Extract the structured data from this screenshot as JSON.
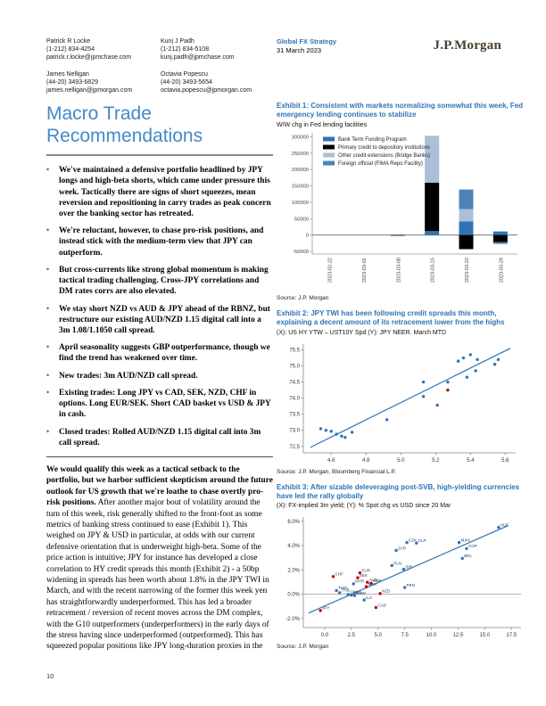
{
  "header": {
    "contacts": [
      {
        "name": "Patrick R Locke",
        "phone": "(1-212) 834-4254",
        "email": "patrick.r.locke@jpmchase.com"
      },
      {
        "name": "Kunj J Padh",
        "phone": "(1-212) 834-5108",
        "email": "kunj.padh@jpmchase.com"
      },
      {
        "name": "James Nelligan",
        "phone": "(44-20) 3493-6829",
        "email": "james.nelligan@jpmorgan.com"
      },
      {
        "name": "Octavia Popescu",
        "phone": "(44-20) 3493-5654",
        "email": "octavia.popescu@jpmorgan.com"
      }
    ],
    "strategy": "Global FX Strategy",
    "date": "31 March 2023",
    "logo": "J.P.Morgan"
  },
  "left": {
    "title": "Macro Trade Recommendations",
    "bullets": [
      "We've maintained a defensive portfolio headlined by JPY longs and high-beta shorts, which came under pressure this week. Tactically there are signs of short squeezes, mean reversion and repositioning in carry trades as peak concern over the banking sector has retreated.",
      "We're reluctant, however, to chase pro-risk positions, and instead stick with the medium-term view that JPY can outperform.",
      "But cross-currents like strong global momentum is making tactical trading challenging. Cross-JPY correlations and DM rates corrs are also elevated.",
      "We stay short NZD vs AUD & JPY ahead of the RBNZ, but restructure our existing AUD/NZD 1.15 digital call into a 3m 1.08/1.1050 call spread.",
      "April seasonality suggests GBP outperformance, though we find the trend has weakened over time.",
      "New trades: 3m AUD/NZD call spread.",
      "Existing trades: Long JPY vs CAD, SEK, NZD, CHF in options. Long EUR/SEK. Short CAD basket vs USD & JPY in cash.",
      "Closed trades: Rolled AUD/NZD 1.15 digital call into 3m call spread."
    ],
    "body_runs": [
      {
        "t": "We would qualify this week as a tactical setback to the portfolio, but we harbor sufficient skepticism around the future outlook for US growth that we're loathe to chase overtly pro-risk positions.",
        "b": true
      },
      {
        "t": " After another major bout of volatility around the turn of this week, risk generally shifted to the front-foot as some metrics of banking stress continued to ease (Exhibit 1). This weighed on JPY & USD in particular, at odds with our current defensive orientation that is underweight high-beta. Some of the price action is intuitive; JPY for instance has developed a close correlation to HY credit spreads this month (Exhibit 2) - a 50bp widening in spreads has been worth about 1.8% in the JPY TWI in March, and with the recent narrowing of the former this week yen has straightforwardly underperformed. This has led a broader retracement / reversion of recent moves across the DM complex, with the G10 outperformers (underperformers) in the early days of the stress having since underperformed (outperformed). This has squeezed popular positions like JPY long-duration proxies in the",
        "b": false
      }
    ],
    "page_number": "10"
  },
  "exhibits": [
    {
      "title": "Exhibit 1: Consistent with markets normalizing somewhat this week, Fed emergency lending continues to stabilize",
      "subtitle": "W/W chg in Fed lending facilities",
      "source": "Source: J.P. Morgan"
    },
    {
      "title": "Exhibit 2: JPY TWI has been following credit spreads this month, explaining a decent amount of its retracement lower from the highs",
      "subtitle": "(X): US HY YTW – UST10Y Spd (Y): JPY NEER. March MTD",
      "source": "Source: J.P. Morgan, Bloomberg Financial L.P."
    },
    {
      "title": "Exhibit 3: After sizable deleveraging post-SVB, high-yielding currencies have led the rally globally",
      "subtitle": "(X): FX-implied 3m yield; (Y): % Spot chg vs USD since 20 Mar",
      "source": "Source: J.P. Morgan"
    }
  ],
  "chart_data": [
    {
      "type": "stacked_bar",
      "title": "W/W chg in Fed lending facilities",
      "categories": [
        "2023-02-22",
        "2023-03-01",
        "2023-03-08",
        "2023-03-15",
        "2023-03-22",
        "2023-03-29"
      ],
      "series": [
        {
          "name": "Bank Term Funding Program",
          "color": "#2e74b5",
          "values": [
            0,
            0,
            0,
            12000,
            42000,
            11000
          ]
        },
        {
          "name": "Primary credit to depository institutions",
          "color": "#000000",
          "values": [
            0,
            0,
            -2000,
            148000,
            -43000,
            -22000
          ]
        },
        {
          "name": "Other credit extensions (Bridge Banks)",
          "color": "#a9c0d8",
          "values": [
            0,
            0,
            0,
            143000,
            37000,
            0
          ]
        },
        {
          "name": "Foreign official (FIMA Repo Facility)",
          "color": "#4d84b8",
          "values": [
            0,
            0,
            0,
            0,
            60000,
            -5000
          ]
        }
      ],
      "ylim": [
        -58000,
        312000
      ],
      "yticks": [
        -50000,
        0,
        50000,
        100000,
        150000,
        200000,
        250000,
        300000
      ],
      "ytick_labels": [
        "-50000",
        "0",
        "50000",
        "100000",
        "150000",
        "200000",
        "250000",
        "300000"
      ],
      "grid": false,
      "legend_position": "top-left"
    },
    {
      "type": "scatter",
      "xlabel": "US HY YTW – UST10Y Spd",
      "ylabel": "JPY NEER",
      "xlim": [
        4.44,
        5.66
      ],
      "ylim": [
        72.3,
        75.68
      ],
      "xticks": [
        4.6,
        4.8,
        5.0,
        5.2,
        5.4,
        5.6
      ],
      "xtick_labels": [
        "4.6",
        "4.8",
        "5.0",
        "5.2",
        "5.4",
        "5.6"
      ],
      "yticks": [
        72.5,
        73.0,
        73.5,
        74.0,
        74.5,
        75.0,
        75.5
      ],
      "ytick_labels": [
        "72.5",
        "73.0",
        "73.5",
        "74.0",
        "74.5",
        "75.0",
        "75.5"
      ],
      "point_colors": {
        "b": "#2e74b5",
        "r": "#c00000"
      },
      "points": [
        [
          4.54,
          73.05,
          "b"
        ],
        [
          4.57,
          73.0,
          "b"
        ],
        [
          4.6,
          72.97,
          "b"
        ],
        [
          4.63,
          72.88,
          "b"
        ],
        [
          4.66,
          72.82,
          "b"
        ],
        [
          4.68,
          72.78,
          "b"
        ],
        [
          4.72,
          72.94,
          "b"
        ],
        [
          4.92,
          73.33,
          "b"
        ],
        [
          5.13,
          74.05,
          "b"
        ],
        [
          5.13,
          74.5,
          "b"
        ],
        [
          5.21,
          73.78,
          "b"
        ],
        [
          5.27,
          74.5,
          "b"
        ],
        [
          5.33,
          75.15,
          "b"
        ],
        [
          5.36,
          75.25,
          "b"
        ],
        [
          5.38,
          74.65,
          "b"
        ],
        [
          5.4,
          75.35,
          "b"
        ],
        [
          5.43,
          74.85,
          "b"
        ],
        [
          5.44,
          75.2,
          "b"
        ],
        [
          5.54,
          75.05,
          "b"
        ],
        [
          5.56,
          75.2,
          "b"
        ],
        [
          5.27,
          74.25,
          "r"
        ]
      ],
      "trendline": [
        [
          4.48,
          72.47
        ],
        [
          5.63,
          75.55
        ]
      ],
      "zero_line": false
    },
    {
      "type": "scatter",
      "xlabel": "FX-implied 3m yield",
      "ylabel": "% Spot chg vs USD since 20 Mar",
      "xlim": [
        -2.0,
        18.4
      ],
      "ylim": [
        -2.75,
        6.35
      ],
      "xticks": [
        0,
        2.5,
        5,
        7.5,
        10,
        12.5,
        15,
        17.5
      ],
      "xtick_labels": [
        "0.0",
        "2.5",
        "5.0",
        "7.5",
        "10.0",
        "12.5",
        "15.0",
        "17.5"
      ],
      "yticks": [
        -2,
        0,
        2,
        4,
        6
      ],
      "ytick_labels": [
        "-2.0%",
        "0.0%",
        "2.0%",
        "4.0%",
        "6.0%"
      ],
      "point_colors": {
        "b": "#2e74b5",
        "r": "#c00000"
      },
      "points": [
        [
          -0.4,
          -1.35,
          "r",
          "JPY"
        ],
        [
          0.8,
          1.45,
          "r",
          "CHF"
        ],
        [
          1.1,
          0.3,
          "b",
          "TWD"
        ],
        [
          1.4,
          0.12,
          "b",
          "THB"
        ],
        [
          2.2,
          -0.02,
          "b",
          "CNH"
        ],
        [
          2.5,
          -0.08,
          "b",
          "SGD"
        ],
        [
          2.8,
          -0.12,
          "b",
          "KRW"
        ],
        [
          2.7,
          0.85,
          "b",
          "MYR"
        ],
        [
          3.3,
          1.75,
          "r",
          "EUR"
        ],
        [
          3.1,
          1.35,
          "r",
          "SEK"
        ],
        [
          3.9,
          0.62,
          "r",
          "NOK"
        ],
        [
          4.0,
          0.98,
          "r",
          "AUD"
        ],
        [
          4.35,
          0.9,
          "r",
          "GBP"
        ],
        [
          3.7,
          -0.48,
          "b",
          "ILS"
        ],
        [
          5.2,
          0.05,
          "r",
          "NZD"
        ],
        [
          4.8,
          -1.1,
          "r",
          "CAD"
        ],
        [
          6.3,
          2.35,
          "b",
          "PLN"
        ],
        [
          6.7,
          3.6,
          "b",
          "ZAR"
        ],
        [
          7.4,
          2.05,
          "b",
          "IDR"
        ],
        [
          7.5,
          0.55,
          "b",
          "PEN"
        ],
        [
          7.7,
          4.25,
          "b",
          "CZK"
        ],
        [
          8.6,
          4.2,
          "b",
          "CLP"
        ],
        [
          12.6,
          4.25,
          "b",
          "MXN"
        ],
        [
          13.3,
          3.75,
          "b",
          "COP"
        ],
        [
          12.9,
          2.95,
          "b",
          "BRL"
        ],
        [
          16.3,
          5.5,
          "b",
          "HUF"
        ]
      ],
      "trendline": [
        [
          -1.5,
          -1.55
        ],
        [
          17.2,
          5.65
        ]
      ],
      "zero_line": true
    }
  ]
}
